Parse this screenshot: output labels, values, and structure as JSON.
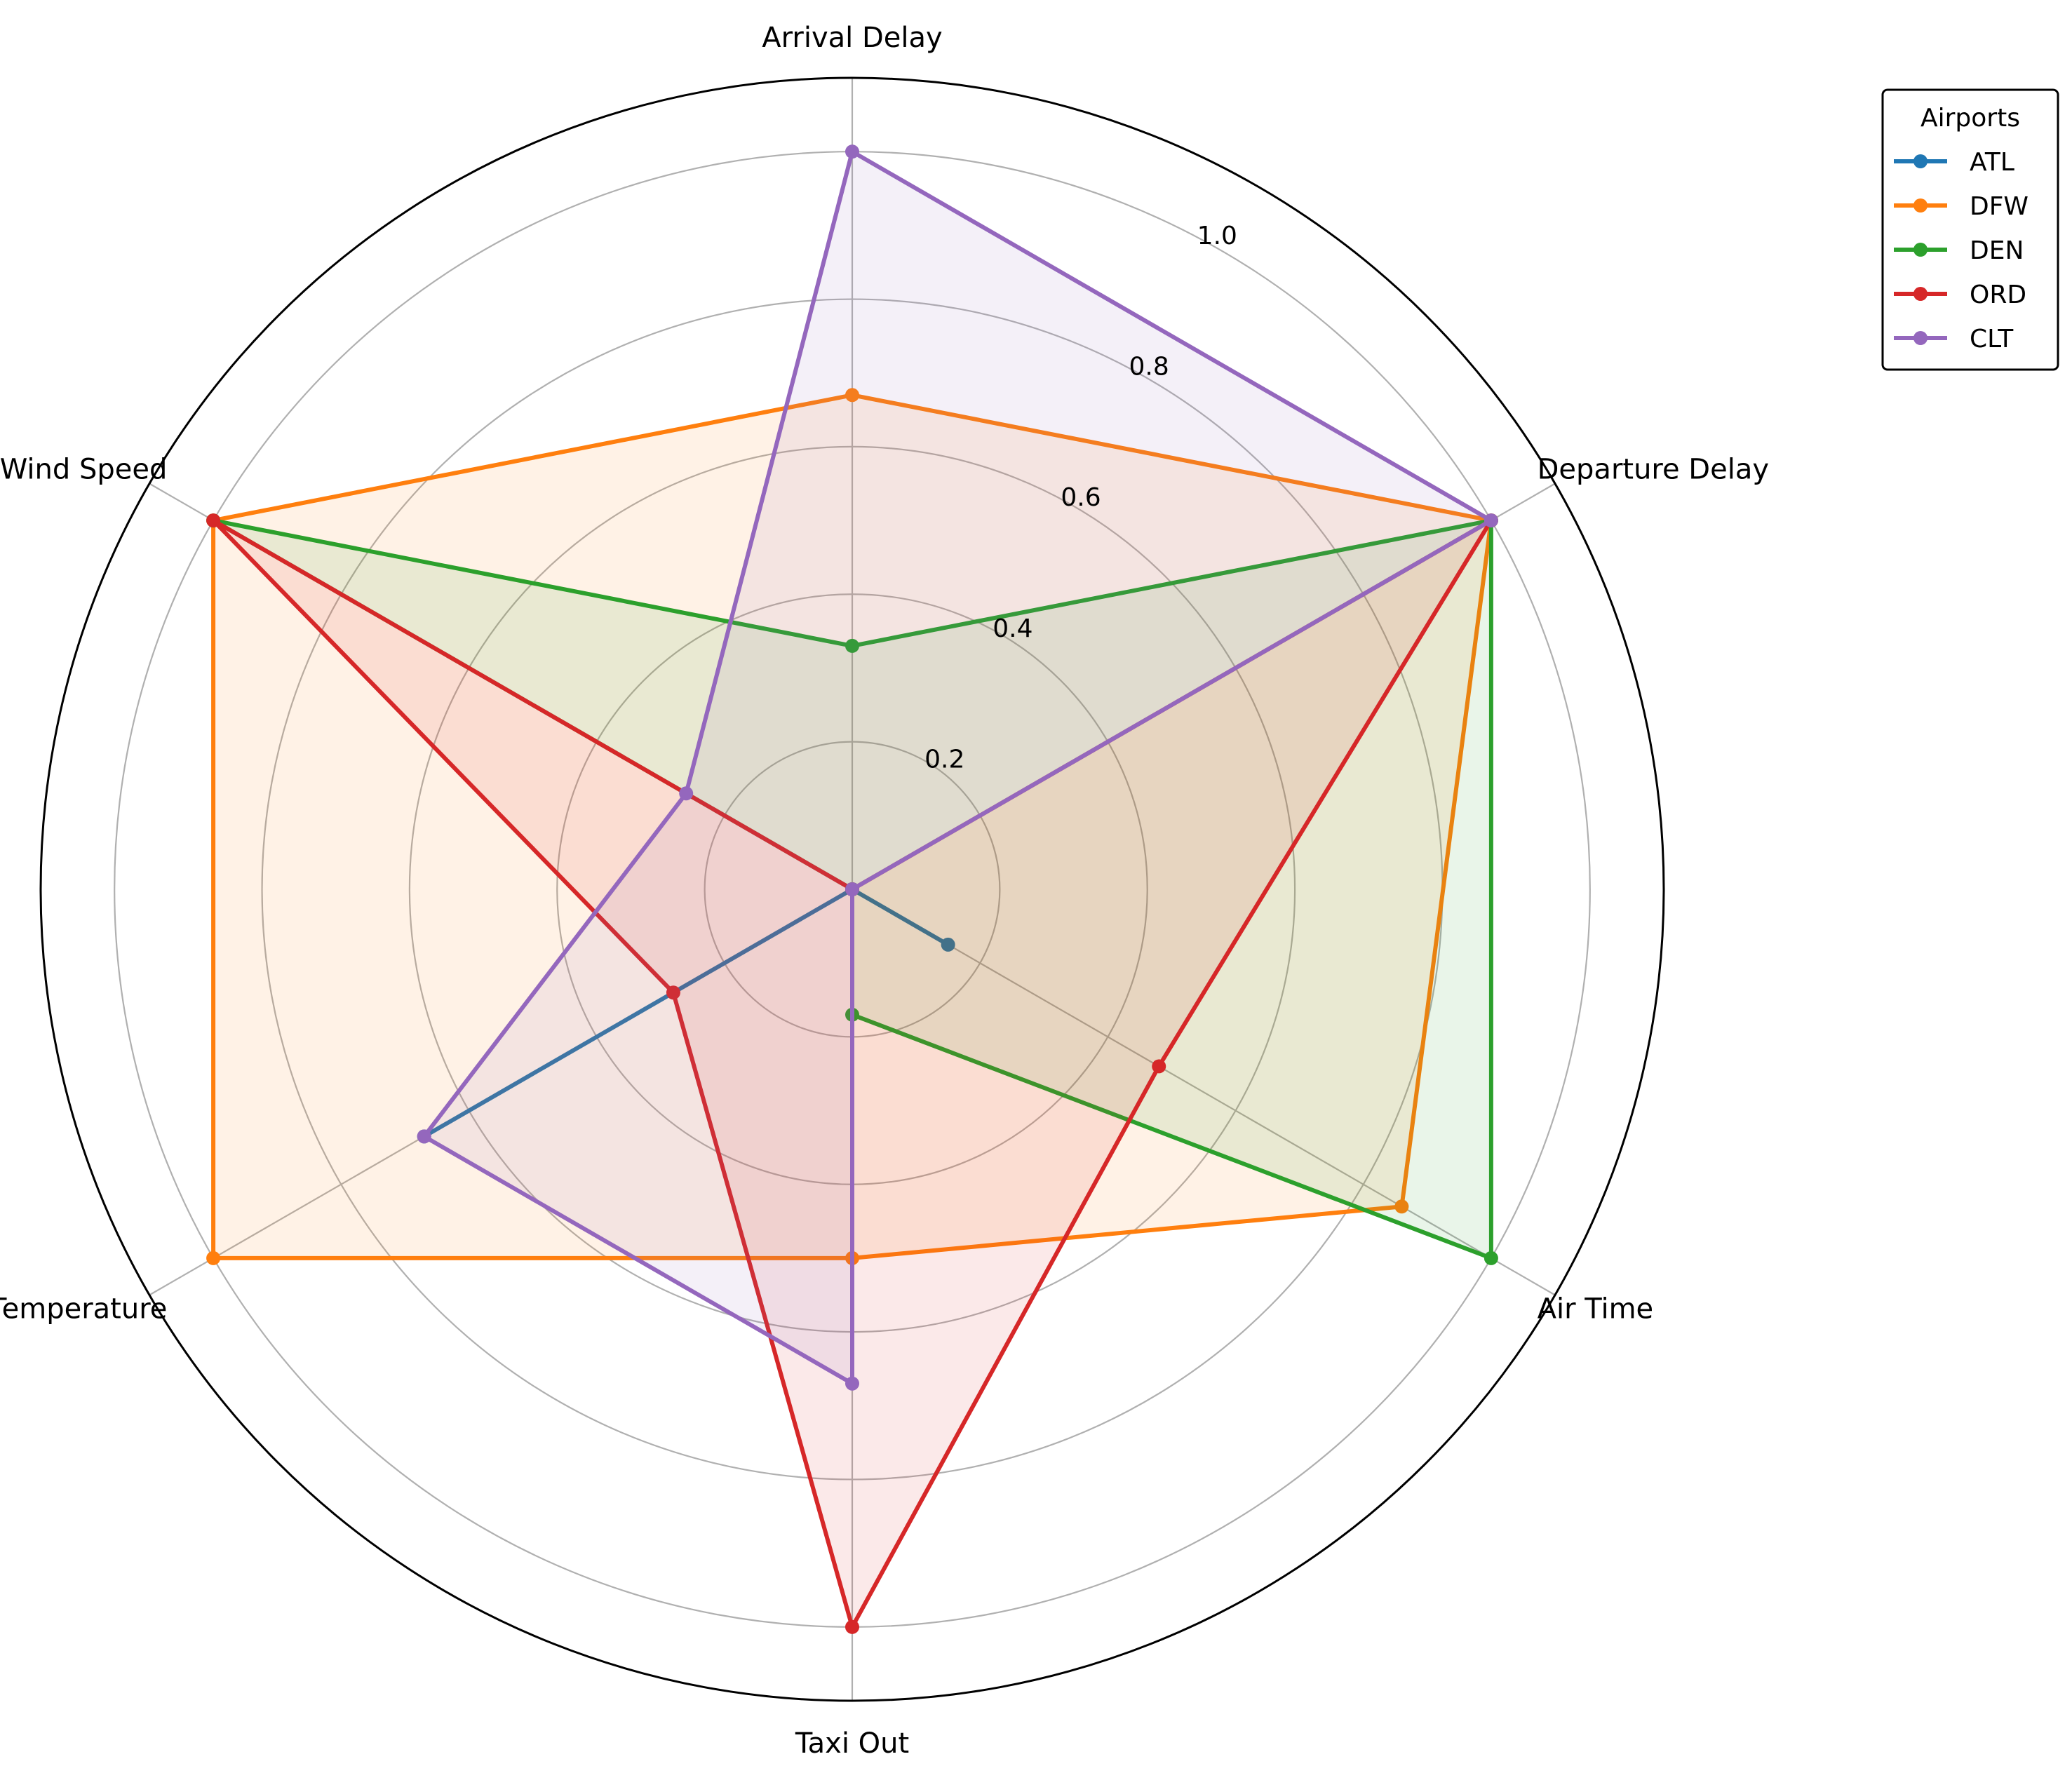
{
  "chart_data": {
    "type": "radar",
    "categories": [
      "Arrival Delay",
      "Departure Delay",
      "Air Time",
      "Taxi Out",
      "Temperature",
      "Wind Speed"
    ],
    "rlim": [
      0,
      1.1
    ],
    "rticks": [
      0.2,
      0.4,
      0.6,
      0.8,
      1.0
    ],
    "rtick_labels": [
      "0.2",
      "0.4",
      "0.6",
      "0.8",
      "1.0"
    ],
    "grid": true,
    "legend_placement": "upper-right, outside plot",
    "legend_title": "Airports",
    "series": [
      {
        "name": "ATL",
        "color": "#1f77b4",
        "values": [
          0.0,
          0.0,
          0.15,
          0.0,
          0.67,
          0.0
        ]
      },
      {
        "name": "DFW",
        "color": "#ff7f0e",
        "values": [
          0.67,
          1.0,
          0.86,
          0.5,
          1.0,
          1.0
        ]
      },
      {
        "name": "DEN",
        "color": "#2ca02c",
        "values": [
          0.33,
          1.0,
          1.0,
          0.17,
          0.0,
          1.0
        ]
      },
      {
        "name": "ORD",
        "color": "#d62728",
        "values": [
          0.0,
          1.0,
          0.48,
          1.0,
          0.28,
          1.0
        ]
      },
      {
        "name": "CLT",
        "color": "#9467bd",
        "values": [
          1.0,
          1.0,
          0.0,
          0.67,
          0.67,
          0.26
        ]
      }
    ]
  }
}
